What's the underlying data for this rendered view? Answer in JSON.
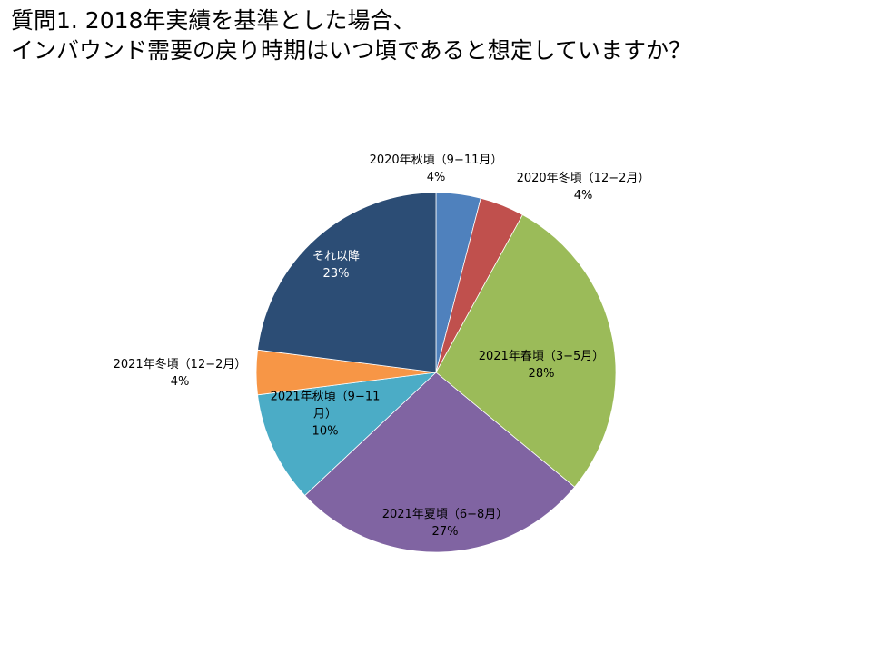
{
  "title": {
    "line1": "質問1. 2018年実績を基準とした場合、",
    "line2": "インバウンド需要の戻り時期はいつ頃であると想定していますか？"
  },
  "chart_data": {
    "type": "pie",
    "start_angle_deg": 0,
    "direction": "clockwise",
    "slices": [
      {
        "label": "2020年秋頃（9−11月）",
        "label_lines": [
          "2020年秋頃（9−11月）"
        ],
        "value": 4,
        "value_label": "4%",
        "color": "#4F81BD",
        "label_placement": "outside"
      },
      {
        "label": "2020年冬頃（12−2月）",
        "label_lines": [
          "2020年冬頃（12−2月）"
        ],
        "value": 4,
        "value_label": "4%",
        "color": "#C0504D",
        "label_placement": "outside"
      },
      {
        "label": "2021年春頃（3−5月）",
        "label_lines": [
          "2021年春頃（3−5月）"
        ],
        "value": 28,
        "value_label": "28%",
        "color": "#9BBB59",
        "label_placement": "inside"
      },
      {
        "label": "2021年夏頃（6−8月）",
        "label_lines": [
          "2021年夏頃（6−8月）"
        ],
        "value": 27,
        "value_label": "27%",
        "color": "#8064A2",
        "label_placement": "inside"
      },
      {
        "label": "2021年秋頃（9−11月）",
        "label_lines": [
          "2021年秋頃（9−11",
          "月）"
        ],
        "value": 10,
        "value_label": "10%",
        "color": "#4BACC6",
        "label_placement": "inside"
      },
      {
        "label": "2021年冬頃（12−2月）",
        "label_lines": [
          "2021年冬頃（12−2月）"
        ],
        "value": 4,
        "value_label": "4%",
        "color": "#F79646",
        "label_placement": "outside"
      },
      {
        "label": "それ以降",
        "label_lines": [
          "それ以降"
        ],
        "value": 23,
        "value_label": "23%",
        "color": "#2C4D75",
        "label_placement": "inside",
        "label_color": "#FFFFFF"
      }
    ]
  }
}
